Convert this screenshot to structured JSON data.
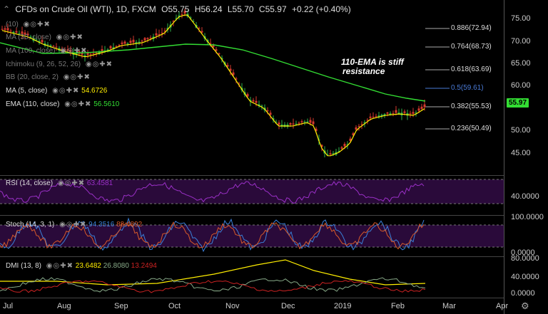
{
  "header": {
    "symbol": "CFDs on Crude Oil (WTI), 1D, FXCM",
    "open": "O55.75",
    "high": "H56.24",
    "low": "L55.70",
    "close": "C55.97",
    "change": "+0.22 (+0.40%)"
  },
  "indicators": [
    {
      "label": "(10)",
      "value": "",
      "style": "dim"
    },
    {
      "label": "MA (30, close)",
      "value": "",
      "style": "dim"
    },
    {
      "label": "MA (100, close)",
      "value": "",
      "style": "dim"
    },
    {
      "label": "Ichimoku (9, 26, 52, 26)",
      "value": "",
      "style": "dim"
    },
    {
      "label": "BB (20, close, 2)",
      "value": "",
      "style": "dim"
    },
    {
      "label": "MA (5, close)",
      "value": "54.6726",
      "style": "bright",
      "color": "#ffee00"
    },
    {
      "label": "EMA (110, close)",
      "value": "56.5610",
      "style": "bright",
      "color": "#33dd33"
    }
  ],
  "annotation": {
    "line1": "110-EMA is stiff",
    "line2": "resistance"
  },
  "price_axis": [
    "75.00",
    "70.00",
    "65.00",
    "60.00",
    "55.00",
    "50.00",
    "45.00"
  ],
  "last_price": "55.97",
  "fib_levels": [
    {
      "label": "0.886(72.94)",
      "color": "#dddddd"
    },
    {
      "label": "0.764(68.73)",
      "color": "#dddddd"
    },
    {
      "label": "0.618(63.69)",
      "color": "#dddddd"
    },
    {
      "label": "0.5(59.61)",
      "color": "#4a7bd8"
    },
    {
      "label": "0.382(55.53)",
      "color": "#dddddd"
    },
    {
      "label": "0.236(50.49)",
      "color": "#dddddd"
    }
  ],
  "rsi": {
    "label": "RSI (14, close)",
    "value": "63.4581",
    "axis": "40.0000"
  },
  "stoch": {
    "label": "Stoch (14, 3, 1)",
    "k": "94.3516",
    "d": "88.4892",
    "axis_top": "100.0000",
    "axis_bottom": "0.0000"
  },
  "dmi": {
    "label": "DMI (13, 8)",
    "v1": "23.6482",
    "v2": "26.8080",
    "v3": "13.2494",
    "axis": [
      "80.0000",
      "40.0000",
      "0.0000"
    ]
  },
  "months": [
    "Jul",
    "Aug",
    "Sep",
    "Oct",
    "Nov",
    "Dec",
    "2019",
    "Feb",
    "Mar",
    "Apr"
  ],
  "colors": {
    "ma5": "#ffee00",
    "ema110": "#33dd33",
    "rsi": "#9b30c8",
    "stoch_k": "#3a7fd8",
    "stoch_d": "#d85a2a",
    "dmi_adx": "#ffee00",
    "dmi_plus": "#88aa88",
    "dmi_minus": "#cc2222"
  }
}
